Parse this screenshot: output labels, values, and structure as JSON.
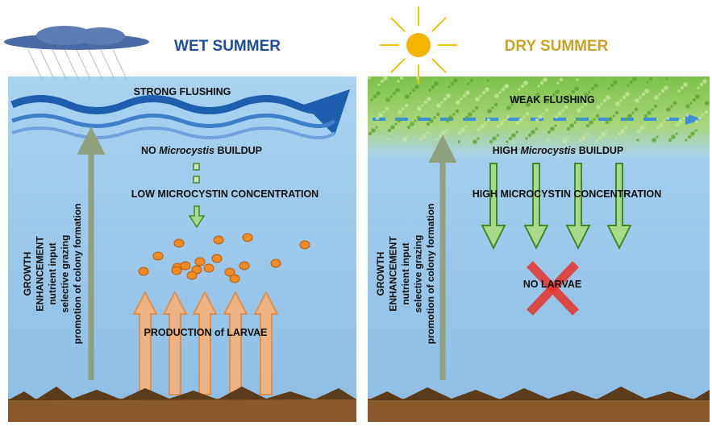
{
  "panels": [
    {
      "title": "WET SUMMER",
      "flushing": "STRONG FLUSHING",
      "buildup": {
        "prefix": "NO ",
        "italic": "Microcystis",
        "suffix": " BUILDUP"
      },
      "concentration": "LOW MICROCYSTIN CONCENTRATION",
      "larvae": "PRODUCTION of LARVAE",
      "growth_label": [
        "GROWTH",
        "ENHANCEMENT",
        "nutrient input",
        "selective grazing",
        "promotion of colony formation"
      ]
    },
    {
      "title": "DRY SUMMER",
      "flushing": "WEAK FLUSHING",
      "buildup": {
        "prefix": "HIGH ",
        "italic": "Microcystis",
        "suffix": " BUILDUP"
      },
      "concentration": "HIGH MICROCYSTIN CONCENTRATION",
      "larvae": "NO LARVAE",
      "growth_label": [
        "GROWTH",
        "ENHANCEMENT",
        "nutrient input",
        "selective grazing",
        "promotion of colony formation"
      ]
    }
  ]
}
